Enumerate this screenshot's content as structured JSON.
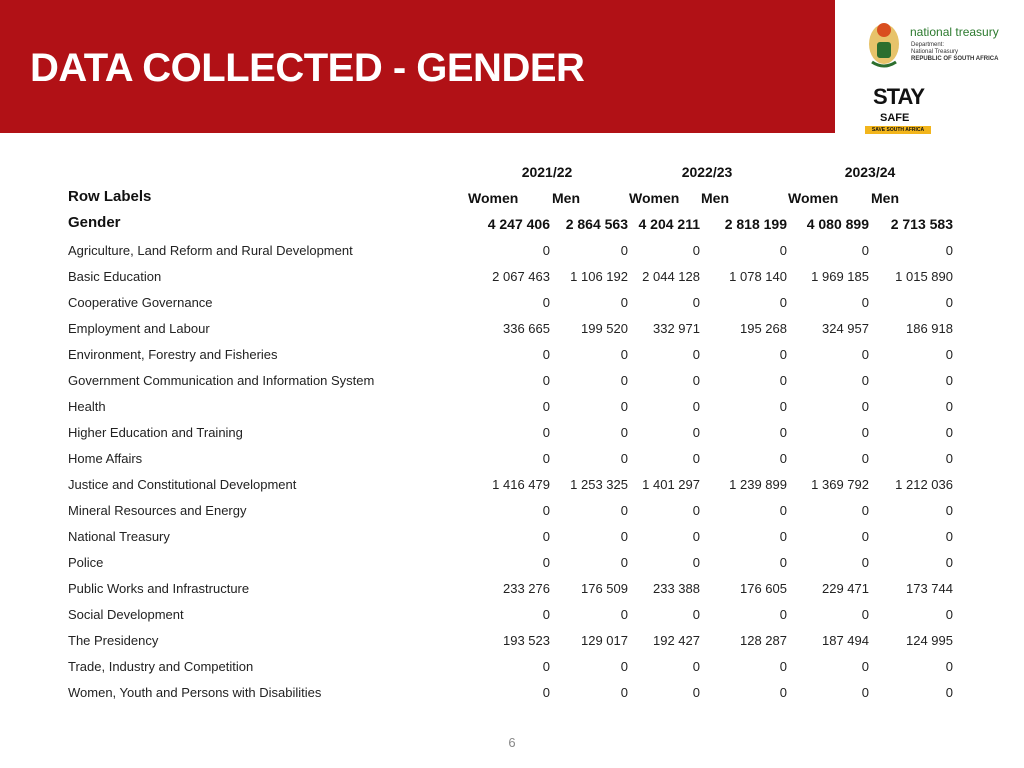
{
  "header": {
    "title": "DATA COLLECTED - GENDER"
  },
  "logos": {
    "treasury": {
      "name": "national treasury",
      "lines": [
        "Department:",
        "National Treasury",
        "REPUBLIC OF SOUTH AFRICA"
      ]
    },
    "stay_safe": {
      "text": "STAY",
      "sub": "SAFE",
      "tagline": "SAVE SOUTH AFRICA"
    }
  },
  "table": {
    "years": [
      "2021/22",
      "2022/23",
      "2023/24"
    ],
    "columns": [
      "Women",
      "Men",
      "Women",
      "Men",
      "Women",
      "Men"
    ],
    "row_labels_heading": "Row Labels",
    "total": {
      "label": "Gender",
      "values": [
        "4 247 406",
        "2 864 563",
        "4 204 211",
        "2 818 199",
        "4 080 899",
        "2 713 583"
      ]
    },
    "rows": [
      {
        "label": "Agriculture, Land Reform and Rural Development",
        "values": [
          "0",
          "0",
          "0",
          "0",
          "0",
          "0"
        ]
      },
      {
        "label": "Basic Education",
        "values": [
          "2 067 463",
          "1 106 192",
          "2 044 128",
          "1 078 140",
          "1 969 185",
          "1 015 890"
        ]
      },
      {
        "label": "Cooperative Governance",
        "values": [
          "0",
          "0",
          "0",
          "0",
          "0",
          "0"
        ]
      },
      {
        "label": "Employment and Labour",
        "values": [
          "336 665",
          "199 520",
          "332 971",
          "195 268",
          "324 957",
          "186 918"
        ]
      },
      {
        "label": "Environment, Forestry and Fisheries",
        "values": [
          "0",
          "0",
          "0",
          "0",
          "0",
          "0"
        ]
      },
      {
        "label": "Government Communication and Information System",
        "values": [
          "0",
          "0",
          "0",
          "0",
          "0",
          "0"
        ]
      },
      {
        "label": "Health",
        "values": [
          "0",
          "0",
          "0",
          "0",
          "0",
          "0"
        ]
      },
      {
        "label": "Higher Education and Training",
        "values": [
          "0",
          "0",
          "0",
          "0",
          "0",
          "0"
        ]
      },
      {
        "label": "Home Affairs",
        "values": [
          "0",
          "0",
          "0",
          "0",
          "0",
          "0"
        ]
      },
      {
        "label": "Justice and Constitutional Development",
        "values": [
          "1 416 479",
          "1 253 325",
          "1 401 297",
          "1 239 899",
          "1 369 792",
          "1 212 036"
        ]
      },
      {
        "label": "Mineral Resources and Energy",
        "values": [
          "0",
          "0",
          "0",
          "0",
          "0",
          "0"
        ]
      },
      {
        "label": "National Treasury",
        "values": [
          "0",
          "0",
          "0",
          "0",
          "0",
          "0"
        ]
      },
      {
        "label": "Police",
        "values": [
          "0",
          "0",
          "0",
          "0",
          "0",
          "0"
        ]
      },
      {
        "label": "Public Works and Infrastructure",
        "values": [
          "233 276",
          "176 509",
          "233 388",
          "176 605",
          "229 471",
          "173 744"
        ]
      },
      {
        "label": "Social Development",
        "values": [
          "0",
          "0",
          "0",
          "0",
          "0",
          "0"
        ]
      },
      {
        "label": "The Presidency",
        "values": [
          "193 523",
          "129 017",
          "192 427",
          "128 287",
          "187 494",
          "124 995"
        ]
      },
      {
        "label": "Trade, Industry and Competition",
        "values": [
          "0",
          "0",
          "0",
          "0",
          "0",
          "0"
        ]
      },
      {
        "label": "Women, Youth and Persons with Disabilities",
        "values": [
          "0",
          "0",
          "0",
          "0",
          "0",
          "0"
        ]
      }
    ]
  },
  "page_number": "6"
}
